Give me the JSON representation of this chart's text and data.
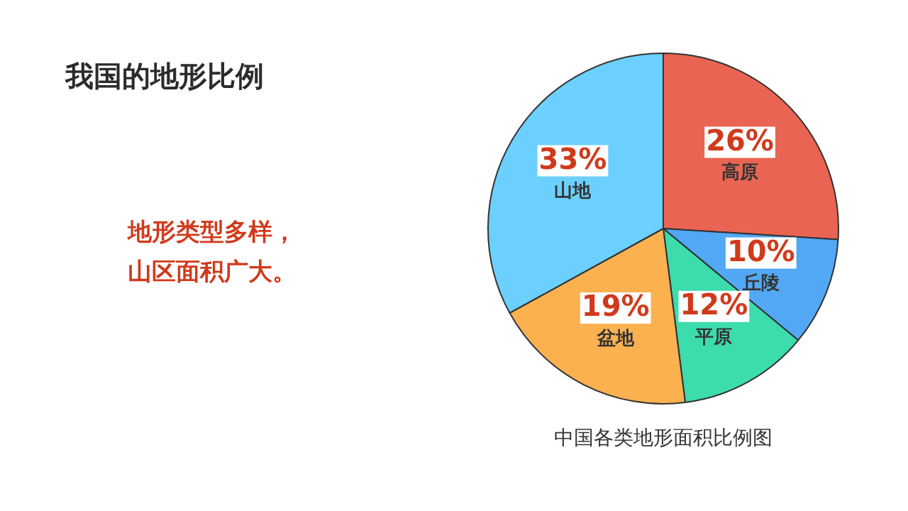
{
  "chart_data": {
    "type": "pie",
    "title": "我国的地形比例",
    "subtitle": "地形类型多样，山区面积广大。",
    "categories": [
      "高原",
      "丘陵",
      "平原",
      "盆地",
      "山地"
    ],
    "values": [
      26,
      10,
      12,
      19,
      33
    ],
    "colors": [
      "#e96452",
      "#52a8f5",
      "#3ddcac",
      "#fbb150",
      "#6bd0fe"
    ],
    "value_labels": [
      "26%",
      "10%",
      "12%",
      "19%",
      "33%"
    ],
    "legend": false,
    "annotations": [
      "中国各类地形面积比例图"
    ]
  }
}
